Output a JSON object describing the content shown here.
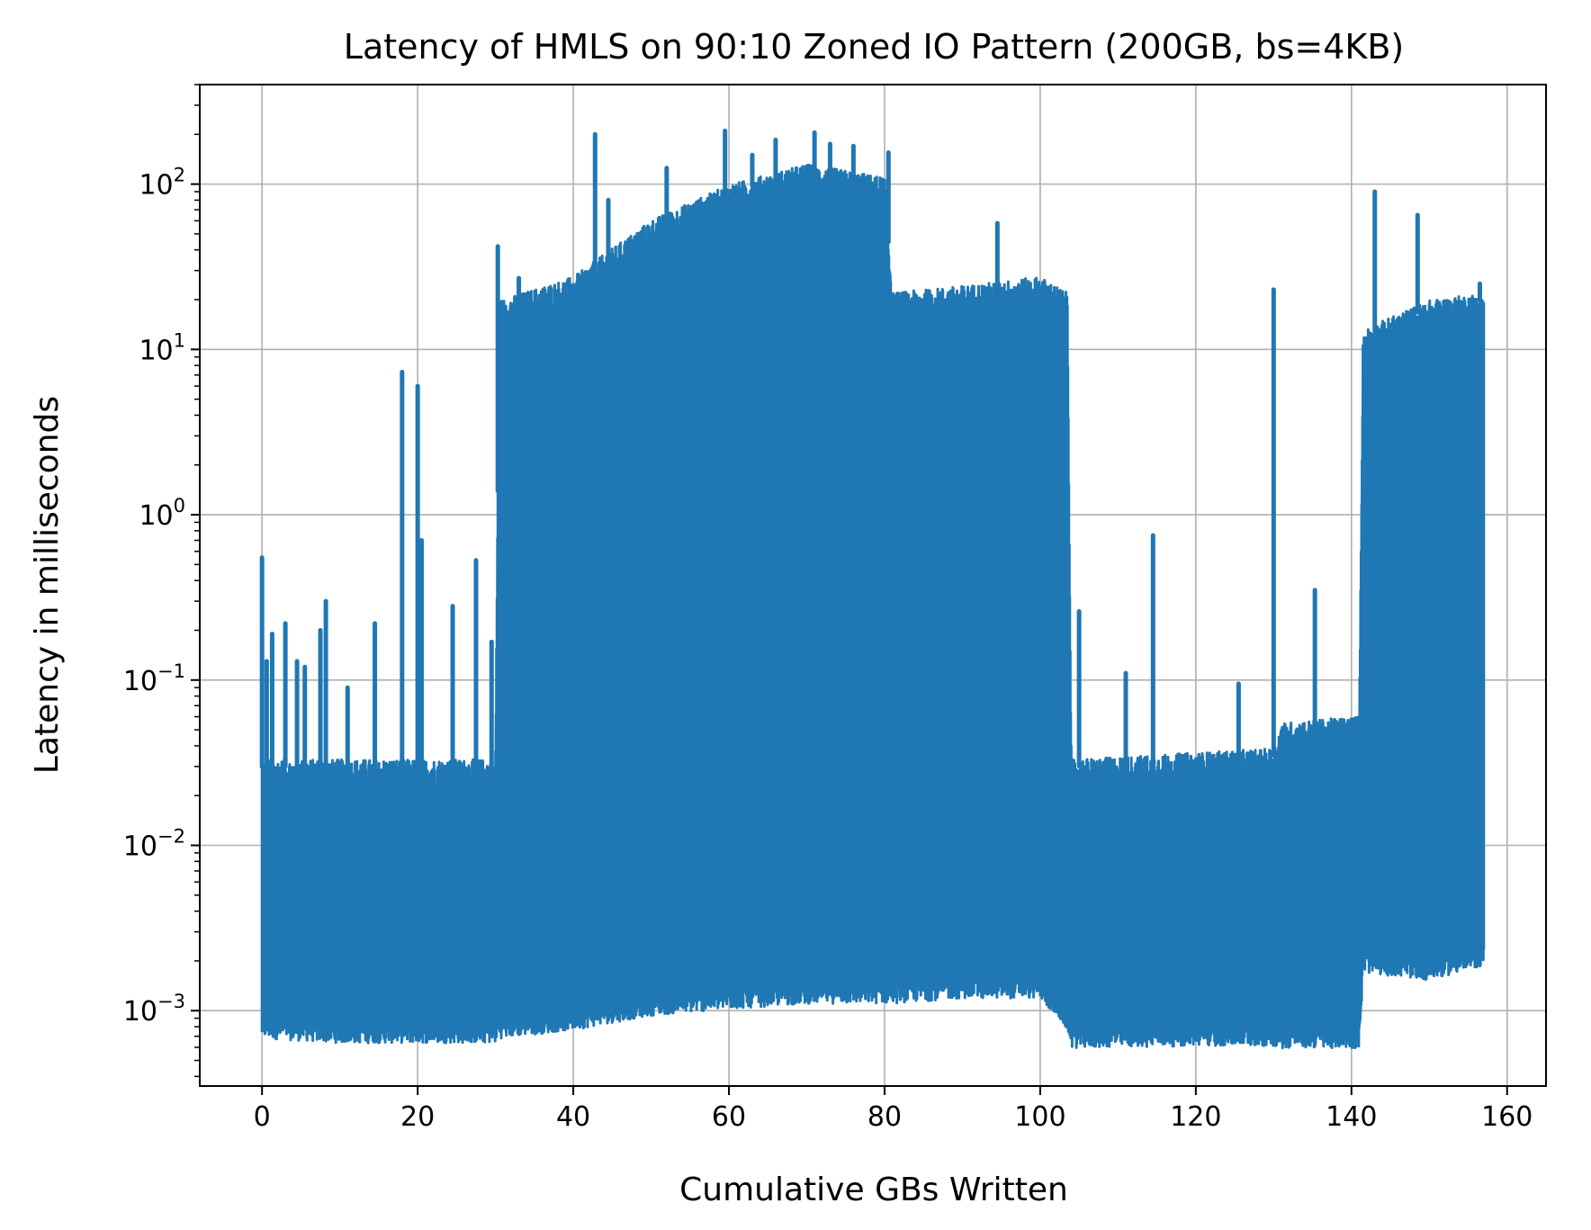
{
  "chart_data": {
    "type": "line",
    "title": "Latency of HMLS on 90:10 Zoned IO Pattern (200GB, bs=4KB)",
    "xlabel": "Cumulative GBs Written",
    "ylabel": "Latency in milliseconds",
    "xscale": "linear",
    "yscale": "log",
    "xlim": [
      -8,
      165
    ],
    "ylim": [
      0.00035,
      400
    ],
    "grid": true,
    "legend": "none",
    "series_color": "#1f77b4",
    "x_ticks": [
      0,
      20,
      40,
      60,
      80,
      100,
      120,
      140,
      160
    ],
    "x_tick_labels": [
      "0",
      "20",
      "40",
      "60",
      "80",
      "100",
      "120",
      "140",
      "160"
    ],
    "y_ticks": [
      0.001,
      0.01,
      0.1,
      1,
      10,
      100
    ],
    "y_tick_labels": [
      {
        "base": "10",
        "exp": "−3"
      },
      {
        "base": "10",
        "exp": "−2"
      },
      {
        "base": "10",
        "exp": "−1"
      },
      {
        "base": "10",
        "exp": "0"
      },
      {
        "base": "10",
        "exp": "1"
      },
      {
        "base": "10",
        "exp": "2"
      }
    ],
    "series": [
      {
        "envelope": [
          {
            "x": 0,
            "low": 0.0008,
            "high": 0.03
          },
          {
            "x": 10,
            "low": 0.00075,
            "high": 0.03
          },
          {
            "x": 20,
            "low": 0.00075,
            "high": 0.03
          },
          {
            "x": 30,
            "low": 0.00075,
            "high": 0.03
          },
          {
            "x": 30.5,
            "low": 0.0008,
            "high": 18
          },
          {
            "x": 40,
            "low": 0.0009,
            "high": 25
          },
          {
            "x": 50,
            "low": 0.0011,
            "high": 55
          },
          {
            "x": 60,
            "low": 0.0012,
            "high": 90
          },
          {
            "x": 70,
            "low": 0.0013,
            "high": 120
          },
          {
            "x": 80,
            "low": 0.0013,
            "high": 100
          },
          {
            "x": 81,
            "low": 0.0013,
            "high": 20
          },
          {
            "x": 90,
            "low": 0.0014,
            "high": 22
          },
          {
            "x": 100,
            "low": 0.0014,
            "high": 25
          },
          {
            "x": 103.5,
            "low": 0.0009,
            "high": 20
          },
          {
            "x": 104,
            "low": 0.0007,
            "high": 0.03
          },
          {
            "x": 120,
            "low": 0.00072,
            "high": 0.033
          },
          {
            "x": 130,
            "low": 0.00072,
            "high": 0.035
          },
          {
            "x": 131,
            "low": 0.0007,
            "high": 0.05
          },
          {
            "x": 141,
            "low": 0.0007,
            "high": 0.055
          },
          {
            "x": 141.5,
            "low": 0.002,
            "high": 12
          },
          {
            "x": 150,
            "low": 0.0018,
            "high": 18
          },
          {
            "x": 157,
            "low": 0.0022,
            "high": 20
          }
        ],
        "spikes": [
          {
            "x": 0,
            "y": 0.55
          },
          {
            "x": 0.6,
            "y": 0.13
          },
          {
            "x": 1.3,
            "y": 0.19
          },
          {
            "x": 3,
            "y": 0.22
          },
          {
            "x": 4.5,
            "y": 0.13
          },
          {
            "x": 5.5,
            "y": 0.12
          },
          {
            "x": 7.5,
            "y": 0.2
          },
          {
            "x": 8.2,
            "y": 0.3
          },
          {
            "x": 11,
            "y": 0.09
          },
          {
            "x": 14.5,
            "y": 0.22
          },
          {
            "x": 18,
            "y": 7.3
          },
          {
            "x": 20,
            "y": 6
          },
          {
            "x": 20.5,
            "y": 0.7
          },
          {
            "x": 24.5,
            "y": 0.28
          },
          {
            "x": 27.5,
            "y": 0.53
          },
          {
            "x": 29.5,
            "y": 0.17
          },
          {
            "x": 30.3,
            "y": 42
          },
          {
            "x": 33,
            "y": 27
          },
          {
            "x": 42.8,
            "y": 200
          },
          {
            "x": 44.5,
            "y": 80
          },
          {
            "x": 52,
            "y": 125
          },
          {
            "x": 59.5,
            "y": 210
          },
          {
            "x": 63,
            "y": 150
          },
          {
            "x": 66,
            "y": 185
          },
          {
            "x": 71,
            "y": 205
          },
          {
            "x": 73,
            "y": 175
          },
          {
            "x": 76,
            "y": 170
          },
          {
            "x": 80.5,
            "y": 155
          },
          {
            "x": 94.5,
            "y": 58
          },
          {
            "x": 105,
            "y": 0.26
          },
          {
            "x": 111,
            "y": 0.11
          },
          {
            "x": 114.5,
            "y": 0.75
          },
          {
            "x": 125.5,
            "y": 0.095
          },
          {
            "x": 130,
            "y": 23
          },
          {
            "x": 135.3,
            "y": 0.35
          },
          {
            "x": 143,
            "y": 90
          },
          {
            "x": 148.5,
            "y": 65
          },
          {
            "x": 156.5,
            "y": 25
          }
        ]
      }
    ]
  }
}
